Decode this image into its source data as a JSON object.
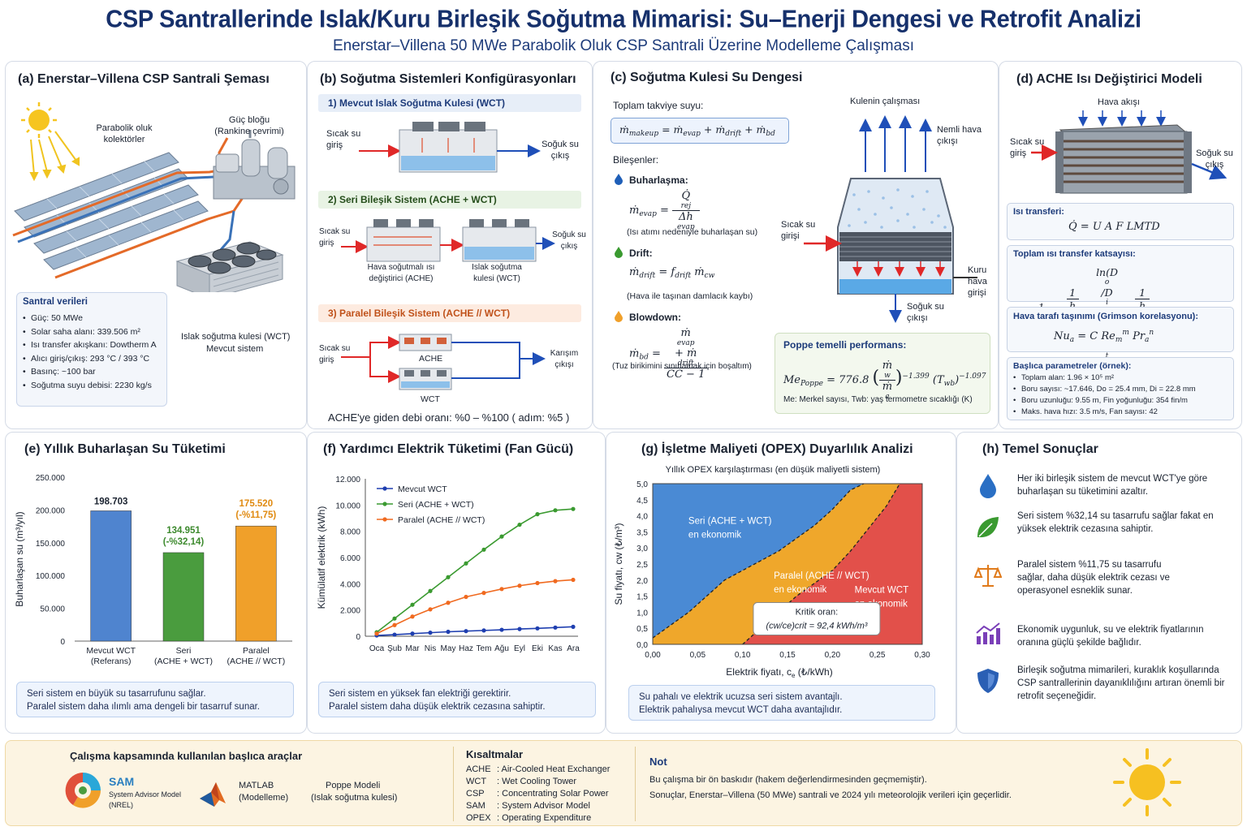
{
  "header": {
    "title": "CSP Santrallerinde Islak/Kuru Birleşik Soğutma Mimarisi: Su–Enerji Dengesi ve Retrofit Analizi",
    "subtitle": "Enerstar–Villena 50 MWe Parabolik Oluk CSP Santrali Üzerine Modelleme Çalışması"
  },
  "panel_a": {
    "title": "(a)  Enerstar–Villena CSP Santrali Şeması",
    "label_collectors": "Parabolik oluk kolektörler",
    "label_power_block": "Güç bloğu (Rankine çevrimi)",
    "label_wct": "Islak soğutma kulesi (WCT)",
    "label_wct2": "Mevcut sistem",
    "data_title": "Santral verileri",
    "data_items": [
      "Güç:  50 MWe",
      "Solar saha alanı:  339.506 m²",
      "Isı transfer akışkanı:  Dowtherm A",
      "Alıcı giriş/çıkış:  293 °C / 393 °C",
      "Basınç:  ~100 bar",
      "Soğutma suyu debisi:  2230 kg/s"
    ]
  },
  "panel_b": {
    "title": "(b)  Soğutma Sistemleri Konfigürasyonları",
    "sec1": "1) Mevcut Islak Soğutma Kulesi (WCT)",
    "sec2": "2) Seri Bileşik Sistem (ACHE + WCT)",
    "sec3": "3) Paralel Bileşik Sistem (ACHE // WCT)",
    "hot_in": "Sıcak su giriş",
    "cold_out": "Soğuk su çıkış",
    "mix_out": "Karışım çıkışı",
    "ache_label": "Hava soğutmalı ısı değiştirici (ACHE)",
    "wct_label": "Islak soğutma kulesi (WCT)",
    "ache": "ACHE",
    "wct": "WCT",
    "ratio": "ACHE'ye giden debi oranı: %0 – %100 ( adım: %5 )"
  },
  "panel_c": {
    "title": "(c)  Soğutma Kulesi Su Dengesi",
    "makeup_label": "Toplam takviye suyu:",
    "components": "Bileşenler:",
    "evap": "Buharlaşma:",
    "evap_note": "(Isı atımı nedeniyle buharlaşan su)",
    "drift": "Drift:",
    "drift_note": "(Hava ile taşınan damlacık kaybı)",
    "blowdown": "Blowdown:",
    "blowdown_note": "(Tuz birikimini sınırlamak için boşaltım)",
    "tower_title": "Kulenin çalışması",
    "humid_out": "Nemli hava çıkışı",
    "hot_in": "Sıcak su girişi",
    "dry_in": "Kuru hava girişi",
    "cold_out": "Soğuk su çıkışı",
    "poppe_title": "Poppe temelli performans:",
    "poppe_note": "Me: Merkel sayısı,  Twb: yaş termometre sıcaklığı (K)",
    "poppe_coef": "776.8",
    "poppe_exp1": "−1.399",
    "poppe_exp2": "−1.097"
  },
  "panel_d": {
    "title": "(d)  ACHE Isı Değiştirici Modeli",
    "air_flow": "Hava akışı",
    "hot_in": "Sıcak su giriş",
    "cold_out": "Soğuk su çıkış",
    "heat_transfer": "Isı transferi:",
    "total_u": "Toplam ısı transfer katsayısı:",
    "air_side": "Hava tarafı taşınımı (Grimson korelasyonu):",
    "params_title": "Başlıca parametreler (örnek):",
    "params": [
      "Toplam alan:  1.96 × 10⁵ m²",
      "Boru sayısı:  ~17.646,  Do = 25.4 mm,  Di = 22.8 mm",
      "Boru uzunluğu:  9.55 m,  Fin yoğunluğu:  354 fin/m",
      "Maks. hava hızı:  3.5 m/s,  Fan sayısı:  42"
    ]
  },
  "panel_e": {
    "title": "(e)  Yıllık Buharlaşan Su Tüketimi",
    "note": "Seri sistem en büyük su tasarrufunu sağlar.\nParalel sistem daha ılımlı ama dengeli bir tasarruf sunar."
  },
  "panel_f": {
    "title": "(f)  Yardımcı Elektrik Tüketimi (Fan Gücü)",
    "note": "Seri sistem en yüksek fan elektriği gerektirir.\nParalel sistem daha düşük elektrik cezasına sahiptir."
  },
  "panel_g": {
    "title": "(g)  İşletme Maliyeti (OPEX) Duyarlılık Analizi",
    "note": "Su pahalı ve elektrik ucuzsa seri sistem avantajlı.\nElektrik pahalıysa mevcut WCT daha avantajlıdır."
  },
  "panel_h": {
    "title": "(h)  Temel Sonuçlar",
    "items": [
      "Her iki birleşik sistem de mevcut WCT'ye göre buharlaşan su tüketimini azaltır.",
      "Seri sistem %32,14 su tasarrufu sağlar fakat en yüksek elektrik cezasına sahiptir.",
      "Paralel sistem %11,75 su tasarrufu sağlar, daha düşük elektrik cezası ve operasyonel esneklik sunar.",
      "Ekonomik uygunluk, su ve elektrik fiyatlarının oranına güçlü şekilde bağlıdır.",
      "Birleşik soğutma mimarileri, kuraklık koşullarında CSP santrallerinin dayanıklılığını artıran önemli bir retrofit seçeneğidir."
    ],
    "icons": [
      "water-drop-icon",
      "leaf-icon",
      "scale-icon",
      "chart-growth-icon",
      "shield-icon"
    ]
  },
  "bottom": {
    "tools_title": "Çalışma kapsamında kullanılan başlıca araçlar",
    "sam": "SAM",
    "sam_desc1": "System Advisor Model",
    "sam_desc2": "(NREL)",
    "matlab1": "MATLAB",
    "matlab2": "(Modelleme)",
    "poppe1": "Poppe Modeli",
    "poppe2": "(Islak soğutma kulesi)",
    "abbr_title": "Kısaltmalar",
    "abbr": [
      {
        "k": "ACHE",
        "v": "Air-Cooled Heat Exchanger"
      },
      {
        "k": "WCT",
        "v": "Wet Cooling Tower"
      },
      {
        "k": "CSP",
        "v": "Concentrating Solar Power"
      },
      {
        "k": "SAM",
        "v": "System Advisor Model"
      },
      {
        "k": "OPEX",
        "v": "Operating Expenditure"
      }
    ],
    "note_title": "Not",
    "note1": "Bu çalışma bir ön baskıdır (hakem değerlendirmesinden geçmemiştir).",
    "note2": "Sonuçlar, Enerstar–Villena (50 MWe) santrali ve 2024 yılı meteorolojik verileri için geçerlidir."
  },
  "chart_data": [
    {
      "type": "bar",
      "categories": [
        "Mevcut WCT\n(Referans)",
        "Seri\n(ACHE + WCT)",
        "Paralel\n(ACHE // WCT)"
      ],
      "values": [
        198703,
        134951,
        175520
      ],
      "value_labels": [
        "198.703",
        "134.951\n(-%32,14)",
        "175.520\n(-%11,75)"
      ],
      "colors": [
        "#4f84cf",
        "#4a9c3e",
        "#f0a02a"
      ],
      "label_colors": [
        "#1a2230",
        "#3d8a2e",
        "#e08a10"
      ],
      "ylabel": "Buharlaşan su (m³/yıl)",
      "ylim": [
        0,
        250000
      ],
      "yticks": [
        "0",
        "50.000",
        "100.000",
        "150.000",
        "200.000",
        "250.000"
      ]
    },
    {
      "type": "line",
      "x": [
        "Oca",
        "Şub",
        "Mar",
        "Nis",
        "May",
        "Haz",
        "Tem",
        "Ağu",
        "Eyl",
        "Eki",
        "Kas",
        "Ara"
      ],
      "ylabel": "Kümülatif elektrik (kWh)",
      "ylim": [
        0,
        12000
      ],
      "yticks": [
        "0",
        "2.000",
        "4.000",
        "6.000",
        "8.000",
        "10.000",
        "12.000"
      ],
      "series": [
        {
          "name": "Mevcut WCT",
          "color": "#1f3fb0",
          "values": [
            60,
            120,
            200,
            270,
            340,
            390,
            440,
            490,
            550,
            600,
            660,
            720
          ]
        },
        {
          "name": "Seri (ACHE + WCT)",
          "color": "#3a9a30",
          "values": [
            300,
            1350,
            2400,
            3450,
            4500,
            5550,
            6600,
            7600,
            8500,
            9300,
            9600,
            9700
          ]
        },
        {
          "name": "Paralel (ACHE // WCT)",
          "color": "#f06a20",
          "values": [
            200,
            850,
            1500,
            2050,
            2550,
            3000,
            3300,
            3600,
            3850,
            4050,
            4200,
            4300
          ]
        }
      ]
    },
    {
      "type": "heatmap",
      "title": "Yıllık OPEX karşılaştırması (en düşük maliyetli sistem)",
      "xlabel": "Elektrik fiyatı,  c",
      "xlabel_sub": "e",
      "xlabel_unit": " (₺/kWh)",
      "ylabel": "Su fiyatı,  cw (₺/m³)",
      "xlim": [
        0,
        0.3
      ],
      "ylim": [
        0,
        5.0
      ],
      "xticks": [
        "0,00",
        "0,05",
        "0,10",
        "0,15",
        "0,20",
        "0,25",
        "0,30"
      ],
      "yticks": [
        "0,0",
        "0,5",
        "1,0",
        "1,5",
        "2,0",
        "2,5",
        "3,0",
        "3,5",
        "4,0",
        "4,5",
        "5,0"
      ],
      "regions": [
        {
          "name": "Seri (ACHE + WCT)\nen ekonomik",
          "color": "#4a8ad4"
        },
        {
          "name": "Paralel (ACHE // WCT)\nen ekonomik",
          "color": "#efa72b"
        },
        {
          "name": "Mevcut WCT\nen ekonomik",
          "color": "#e2504a"
        }
      ],
      "boundary_serial_parallel": [
        [
          0,
          0.2
        ],
        [
          0.02,
          0.6
        ],
        [
          0.04,
          1.0
        ],
        [
          0.06,
          1.5
        ],
        [
          0.08,
          2.0
        ],
        [
          0.1,
          2.3
        ],
        [
          0.12,
          2.6
        ],
        [
          0.14,
          2.9
        ],
        [
          0.16,
          3.3
        ],
        [
          0.18,
          3.7
        ],
        [
          0.2,
          4.2
        ],
        [
          0.22,
          4.8
        ],
        [
          0.235,
          5.0
        ]
      ],
      "boundary_parallel_wct": [
        [
          0.1,
          0.0
        ],
        [
          0.12,
          0.5
        ],
        [
          0.14,
          1.0
        ],
        [
          0.16,
          1.5
        ],
        [
          0.18,
          1.9
        ],
        [
          0.2,
          2.3
        ],
        [
          0.22,
          2.9
        ],
        [
          0.24,
          3.6
        ],
        [
          0.26,
          4.3
        ],
        [
          0.275,
          5.0
        ]
      ],
      "critical_label": "Kritik oran:",
      "critical_value": "(cw/ce)crit  =  92,4 kWh/m³"
    }
  ]
}
